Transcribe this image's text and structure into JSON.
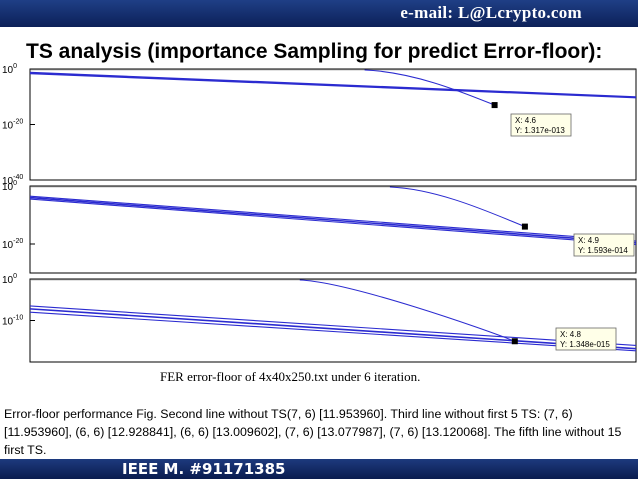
{
  "header": {
    "email": "e-mail: L@Lcrypto.com"
  },
  "title": "TS analysis (importance Sampling for predict Error-floor):",
  "caption": "FER error-floor of 4x40x250.txt under 6 iteration.",
  "description": "Error-floor performance Fig. Second line without TS(7, 6) [11.953960]. Third line without first 5 TS: (7, 6) [11.953960], (6, 6) [12.928841], (6, 6) [13.009602], (7, 6) [13.077987], (7, 6) [13.120068]. The fifth line without 15 first TS.",
  "footer": {
    "ieee": "IEEE M. #91171385"
  },
  "colors": {
    "banner": "#0c2058",
    "line": "#2b2bd0"
  },
  "chart_data": [
    {
      "type": "line",
      "yscale": "log",
      "ylim_exp": [
        -40,
        0
      ],
      "y_tick_labels": [
        {
          "base": "10",
          "exp": "0",
          "value_exp": 0
        },
        {
          "base": "10",
          "exp": "-20",
          "value_exp": -20
        },
        {
          "base": "10",
          "exp": "-40",
          "value_exp": -40
        }
      ],
      "datatip": {
        "x_label": "X: 4.6",
        "y_label": "Y: 1.317e-013",
        "x": 4.6,
        "y": 1.317e-13
      },
      "series_endpoints_exp": [
        [
          -1.2,
          -10.0
        ],
        [
          -1.6,
          -10.3
        ]
      ]
    },
    {
      "type": "line",
      "yscale": "log",
      "ylim_exp": [
        -30,
        0
      ],
      "y_tick_labels": [
        {
          "base": "10",
          "exp": "0",
          "value_exp": 0
        },
        {
          "base": "10",
          "exp": "-20",
          "value_exp": -20
        }
      ],
      "datatip": {
        "x_label": "X: 4.9",
        "y_label": "Y: 1.593e-014",
        "x": 4.9,
        "y": 1.593e-14
      },
      "series_endpoints_exp": [
        [
          -3.5,
          -19.0
        ],
        [
          -4.0,
          -19.6
        ],
        [
          -4.5,
          -20.2
        ]
      ]
    },
    {
      "type": "line",
      "yscale": "log",
      "ylim_exp": [
        -20,
        0
      ],
      "y_tick_labels": [
        {
          "base": "10",
          "exp": "0",
          "value_exp": 0
        },
        {
          "base": "10",
          "exp": "-10",
          "value_exp": -10
        }
      ],
      "datatip": {
        "x_label": "X: 4.8",
        "y_label": "Y: 1.348e-015",
        "x": 4.8,
        "y": 1.348e-15
      },
      "series_endpoints_exp": [
        [
          -6.5,
          -16.0
        ],
        [
          -7.2,
          -16.8
        ],
        [
          -8.0,
          -17.3
        ]
      ]
    }
  ]
}
